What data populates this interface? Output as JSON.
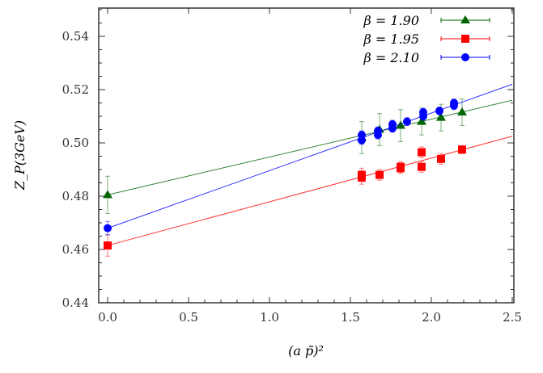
{
  "chart_data": {
    "type": "scatter",
    "xlabel": "(a p̃)²",
    "ylabel": "Z_P(3GeV)",
    "xlim": [
      -0.05,
      2.5
    ],
    "ylim": [
      0.44,
      0.55
    ],
    "xticks": [
      "0.0",
      "0.5",
      "1.0",
      "1.5",
      "2.0",
      "2.5"
    ],
    "yticks": [
      "0.44",
      "0.46",
      "0.48",
      "0.50",
      "0.52",
      "0.54"
    ],
    "legend_position": "top-right",
    "grid": false,
    "series": [
      {
        "name": "β = 1.90",
        "color": "#006400",
        "marker": "triangle",
        "x": [
          0.0,
          1.57,
          1.68,
          1.81,
          1.94,
          2.06,
          2.19
        ],
        "y": [
          0.4805,
          0.502,
          0.505,
          0.5065,
          0.508,
          0.5095,
          0.5115
        ],
        "err": [
          0.007,
          0.006,
          0.006,
          0.006,
          0.005,
          0.005,
          0.005
        ],
        "fit": [
          0.4805,
          0.516
        ]
      },
      {
        "name": "β = 1.95",
        "color": "#ff0000",
        "marker": "square",
        "x": [
          0.0,
          1.57,
          1.57,
          1.68,
          1.81,
          1.81,
          1.94,
          1.94,
          2.06,
          2.19
        ],
        "y": [
          0.4615,
          0.487,
          0.488,
          0.488,
          0.4905,
          0.491,
          0.4965,
          0.491,
          0.494,
          0.4975
        ],
        "err": [
          0.004,
          0.0025,
          0.0025,
          0.002,
          0.002,
          0.002,
          0.002,
          0.002,
          0.002,
          0.0015
        ],
        "fit": [
          0.4615,
          0.5025
        ]
      },
      {
        "name": "β = 2.10",
        "color": "#0000ff",
        "marker": "circle",
        "x": [
          0.0,
          1.57,
          1.57,
          1.67,
          1.67,
          1.76,
          1.76,
          1.85,
          1.95,
          1.95,
          2.05,
          2.14,
          2.14
        ],
        "y": [
          0.468,
          0.501,
          0.503,
          0.503,
          0.5045,
          0.5055,
          0.507,
          0.508,
          0.51,
          0.5115,
          0.512,
          0.514,
          0.515
        ],
        "err": [
          0.0025,
          0.0015,
          0.0015,
          0.0015,
          0.0015,
          0.0015,
          0.0015,
          0.0015,
          0.0015,
          0.0015,
          0.0015,
          0.0015,
          0.0015
        ],
        "fit": [
          0.468,
          0.522
        ]
      }
    ]
  }
}
